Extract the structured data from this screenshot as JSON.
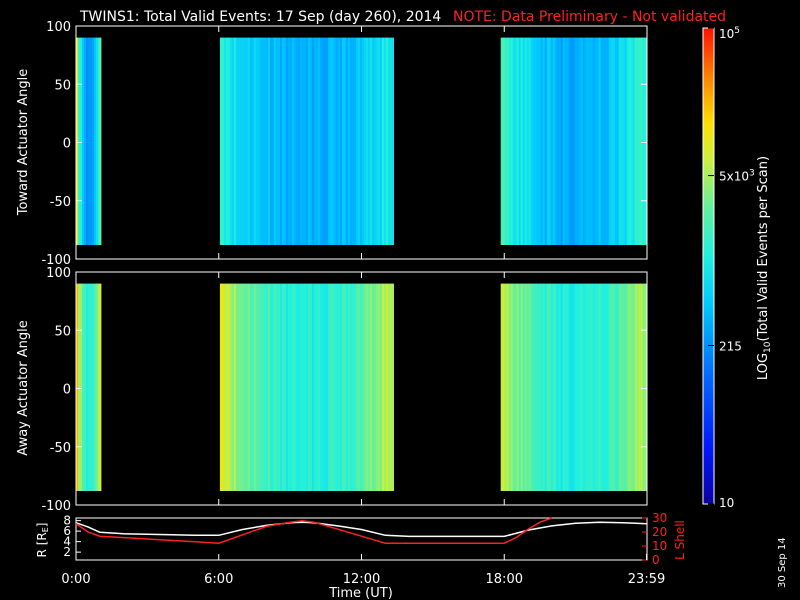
{
  "header": {
    "title": "TWINS1: Total Valid Events: 17 Sep (day 260), 2014",
    "note": "NOTE: Data Preliminary - Not validated"
  },
  "side_date": "30 Sep 14",
  "colors": {
    "background": "#000000",
    "axes": "#ffffff",
    "note": "#ff2020",
    "r_line": "#ffffff",
    "l_shell_line": "#ff2020"
  },
  "chart_data": [
    {
      "type": "heatmap",
      "panel": "toward",
      "ylabel": "Toward Actuator Angle",
      "xlim": [
        0,
        24
      ],
      "ylim": [
        -100,
        100
      ],
      "yticks": [
        "100",
        "50",
        "0",
        "-50",
        "-100"
      ],
      "data_y_range": [
        -88,
        90
      ],
      "intervals": [
        {
          "start_hr": 0.0,
          "end_hr": 1.05,
          "base": 0.3,
          "peak": 0.72
        },
        {
          "start_hr": 6.05,
          "end_hr": 13.35,
          "base": 0.38,
          "peak": 0.52
        },
        {
          "start_hr": 17.85,
          "end_hr": 24.0,
          "base": 0.38,
          "peak": 0.58
        }
      ]
    },
    {
      "type": "heatmap",
      "panel": "away",
      "ylabel": "Away Actuator Angle",
      "xlim": [
        0,
        24
      ],
      "ylim": [
        -100,
        100
      ],
      "yticks": [
        "100",
        "50",
        "0",
        "-50",
        "-100"
      ],
      "data_y_range": [
        -88,
        90
      ],
      "intervals": [
        {
          "start_hr": 0.0,
          "end_hr": 1.05,
          "base": 0.5,
          "peak": 0.82
        },
        {
          "start_hr": 6.05,
          "end_hr": 13.35,
          "base": 0.52,
          "peak": 0.74
        },
        {
          "start_hr": 17.85,
          "end_hr": 24.0,
          "base": 0.52,
          "peak": 0.72
        }
      ]
    },
    {
      "type": "line",
      "panel": "orbit",
      "xlabel": "Time (UT)",
      "xticks": [
        "0:00",
        "6:00",
        "12:00",
        "18:00",
        "23:59"
      ],
      "xtick_hours": [
        0,
        6,
        12,
        18,
        23.98
      ],
      "left_axis": {
        "label": "R [RE]",
        "ticks": [
          "8",
          "6",
          "4",
          "2"
        ],
        "ylim": [
          0.5,
          8.5
        ]
      },
      "right_axis": {
        "label": "L Shell",
        "ticks": [
          "30",
          "20",
          "10",
          "0"
        ],
        "ylim": [
          0,
          30
        ]
      },
      "series": [
        {
          "axis": "left",
          "x": [
            0,
            0.5,
            1,
            2,
            3,
            4,
            5,
            6,
            7,
            8,
            9,
            9.5,
            10,
            11,
            12,
            13,
            14,
            15,
            16,
            17,
            18,
            19,
            20,
            21,
            22,
            23,
            24
          ],
          "y": [
            7.6,
            6.8,
            5.8,
            5.5,
            5.4,
            5.3,
            5.2,
            5.2,
            6.3,
            7.1,
            7.6,
            7.7,
            7.6,
            7.0,
            6.3,
            5.2,
            5.0,
            5.0,
            5.0,
            5.0,
            5.0,
            6.2,
            7.0,
            7.5,
            7.7,
            7.6,
            7.4
          ]
        },
        {
          "axis": "right",
          "x": [
            0,
            0.5,
            1,
            2,
            3,
            4,
            5,
            6,
            7,
            8,
            9,
            9.5,
            10,
            11,
            12,
            13,
            14,
            15,
            16,
            17,
            18,
            18.5,
            19,
            19.5,
            20
          ],
          "y": [
            26,
            20,
            17,
            16,
            15,
            14,
            13,
            12,
            18,
            24,
            27,
            28,
            27,
            22,
            17,
            12,
            12,
            12,
            12,
            12,
            12,
            16,
            22,
            27,
            31
          ]
        }
      ]
    }
  ],
  "colorbar": {
    "label": "LOG10(Total Valid Events per Scan)",
    "ticks": [
      {
        "label": "10",
        "frac": 0.0
      },
      {
        "label": "215",
        "frac": 0.333
      },
      {
        "label": "5x10^3",
        "frac": 0.69
      },
      {
        "label": "10^5",
        "frac": 1.0
      }
    ]
  }
}
